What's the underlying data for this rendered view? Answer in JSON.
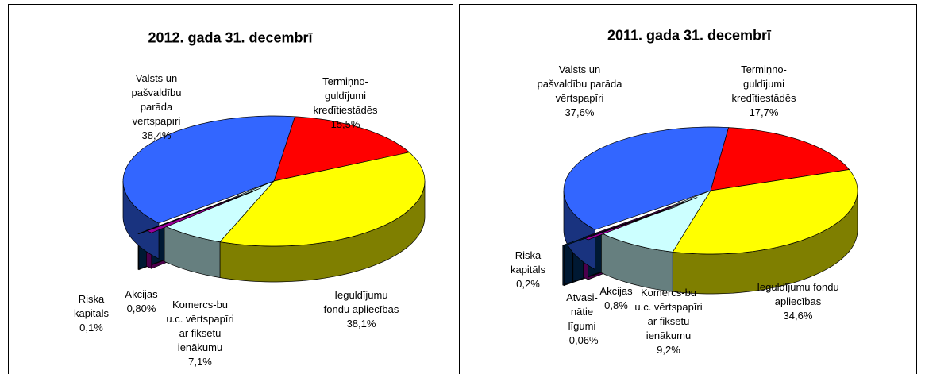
{
  "chart_data": [
    {
      "type": "pie3d",
      "title": "2012. gada 31. decembrī",
      "categories": [
        "Termiņno-\nguldījumi\nkredītiestādēs",
        "Ieguldījumu\nfondu apliecības",
        "Komercs-bu\nu.c. vērtspapīri\nar fiksētu\nienākumu",
        "Akcijas",
        "Riska\nkapitāls",
        "Valsts un\npašvaldību\nparāda\nvērtspapīri"
      ],
      "values": [
        15.5,
        38.1,
        7.1,
        0.8,
        0.1,
        38.4
      ],
      "value_labels": [
        "15,5%",
        "38,1%",
        "7,1%",
        "0,80%",
        "0,1%",
        "38,4%"
      ],
      "colors": [
        "#ff0000",
        "#ffff00",
        "#ccffff",
        "#990099",
        "#003366",
        "#3366ff"
      ]
    },
    {
      "type": "pie3d",
      "title": "2011. gada 31. decembrī",
      "categories": [
        "Termiņno-\nguldījumi\nkredītiestādēs",
        "Ieguldījumu fondu\napliecības",
        "Komercs-bu\nu.c. vērtspapīri\nar fiksētu\nienākumu",
        "Akcijas",
        "Atvasi-\nnātie\nlīgumi",
        "Riska\nkapitāls",
        "Valsts un\npašvaldību parāda\nvērtspapīri"
      ],
      "values": [
        17.7,
        34.6,
        9.2,
        0.8,
        -0.06,
        0.2,
        37.6
      ],
      "value_labels": [
        "17,7%",
        "34,6%",
        "9,2%",
        "0,8%",
        "-0,06%",
        "0,2%",
        "37,6%"
      ],
      "colors": [
        "#ff0000",
        "#ffff00",
        "#ccffff",
        "#990099",
        "#993333",
        "#003366",
        "#3366ff"
      ]
    }
  ]
}
